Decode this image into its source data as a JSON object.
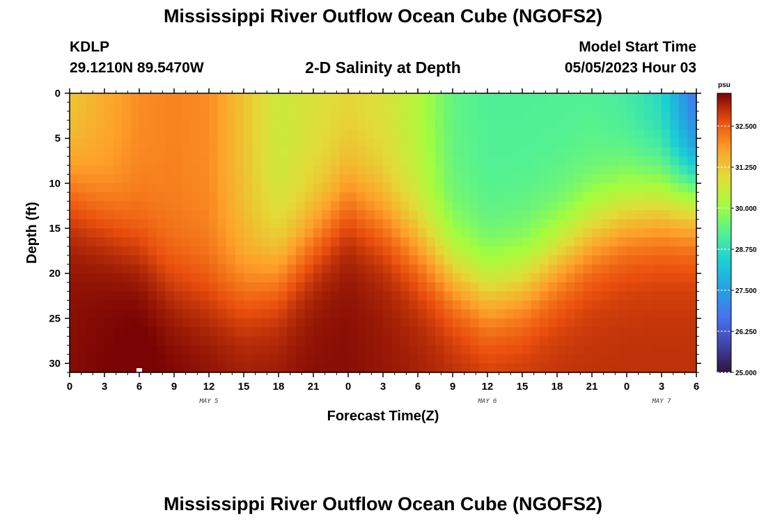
{
  "header": {
    "title": "Mississippi River Outflow Ocean Cube (NGOFS2)",
    "station_id": "KDLP",
    "station_coords": "29.1210N  89.5470W",
    "plot_title": "2-D Salinity at Depth",
    "model_start_label": "Model Start Time",
    "model_start_value": "05/05/2023 Hour 03"
  },
  "footer": {
    "title": "Mississippi River Outflow Ocean Cube (NGOFS2)"
  },
  "chart_data": {
    "type": "heatmap",
    "title": "2-D Salinity at Depth",
    "xlabel": "Forecast Time(Z)",
    "ylabel": "Depth (ft)",
    "x_range_hours": [
      0,
      54
    ],
    "x_tick_labels": [
      "0",
      "3",
      "6",
      "9",
      "12",
      "15",
      "18",
      "21",
      "0",
      "3",
      "6",
      "9",
      "12",
      "15",
      "18",
      "21",
      "0",
      "3",
      "6"
    ],
    "day_labels": [
      "MAY 5",
      "MAY 6",
      "MAY 7"
    ],
    "ylim": [
      0,
      31
    ],
    "y_ticks": [
      0,
      5,
      10,
      15,
      20,
      25,
      30
    ],
    "colorbar": {
      "unit": "psu",
      "range": [
        25.0,
        33.5
      ],
      "tick_labels": [
        "32.500",
        "31.250",
        "30.000",
        "28.750",
        "27.500",
        "26.250",
        "25.000"
      ],
      "tick_values": [
        32.5,
        31.25,
        30.0,
        28.75,
        27.5,
        26.25,
        25.0
      ]
    },
    "field_description_values": {
      "x_hours": [
        0,
        3,
        6,
        9,
        12,
        15,
        18,
        21,
        24,
        27,
        30,
        33,
        36,
        39,
        42,
        45,
        48,
        51,
        54
      ],
      "halocline_depth_ft": [
        11,
        14,
        17,
        21,
        22,
        22,
        20,
        16,
        12,
        14,
        17,
        20,
        22,
        21,
        18,
        15,
        13,
        12,
        11
      ],
      "surface_salinity_psu": [
        31.2,
        31.6,
        32.0,
        32.1,
        32.0,
        31.3,
        30.6,
        30.8,
        31.0,
        30.8,
        30.3,
        29.4,
        29.2,
        29.2,
        29.2,
        29.2,
        29.0,
        28.5,
        26.5
      ],
      "bottom_salinity_psu": [
        33.4,
        33.5,
        33.6,
        33.5,
        33.4,
        33.3,
        33.3,
        33.4,
        33.4,
        33.3,
        33.2,
        33.1,
        33.0,
        33.0,
        33.0,
        33.0,
        33.0,
        33.0,
        33.0
      ]
    },
    "marker": {
      "x_hours": 6,
      "depth_ft": 31
    }
  }
}
